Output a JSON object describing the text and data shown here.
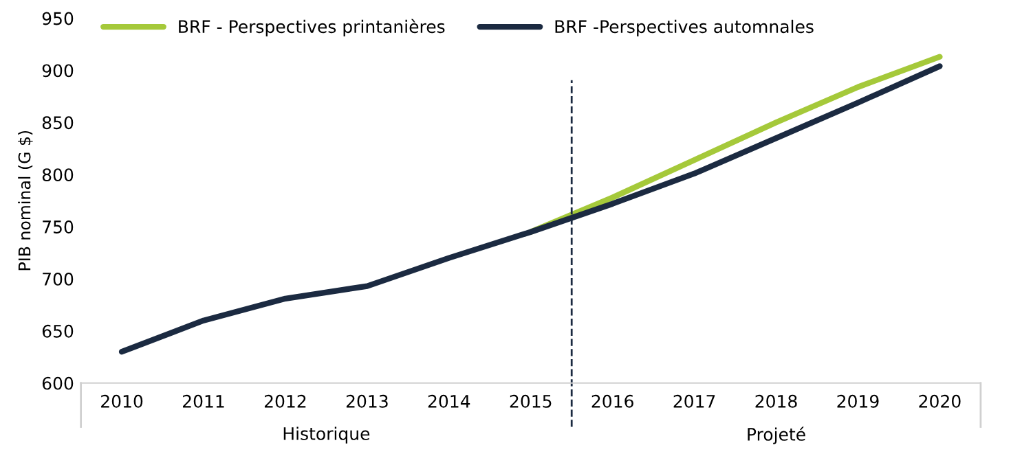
{
  "chart_data": {
    "type": "line",
    "ylabel": "PIB nominal (G $)",
    "x": [
      2010,
      2011,
      2012,
      2013,
      2014,
      2015,
      2016,
      2017,
      2018,
      2019,
      2020
    ],
    "xlim": [
      2009.5,
      2020.5
    ],
    "xticks": [
      2010,
      2011,
      2012,
      2013,
      2014,
      2015,
      2016,
      2017,
      2018,
      2019,
      2020
    ],
    "ylim": [
      600,
      950
    ],
    "yticks": [
      600,
      650,
      700,
      750,
      800,
      850,
      900,
      950
    ],
    "series": [
      {
        "name": "BRF - Perspectives printanières",
        "color": "#a5c93a",
        "values": [
          null,
          null,
          null,
          null,
          null,
          745,
          778,
          814,
          850,
          884,
          913
        ]
      },
      {
        "name": "BRF -Perspectives automnales",
        "color": "#1b2a41",
        "values": [
          630,
          660,
          681,
          693,
          720,
          745,
          772,
          801,
          835,
          869,
          904
        ]
      }
    ],
    "ref_lines": [
      {
        "axis": "x",
        "value": 2015.5,
        "color": "#1b2a41",
        "line_style": "dashed"
      }
    ],
    "annotations": [
      "Historique",
      "Projeté"
    ],
    "legend": "top",
    "grid": false,
    "marker": "none",
    "line_style": "solid"
  }
}
